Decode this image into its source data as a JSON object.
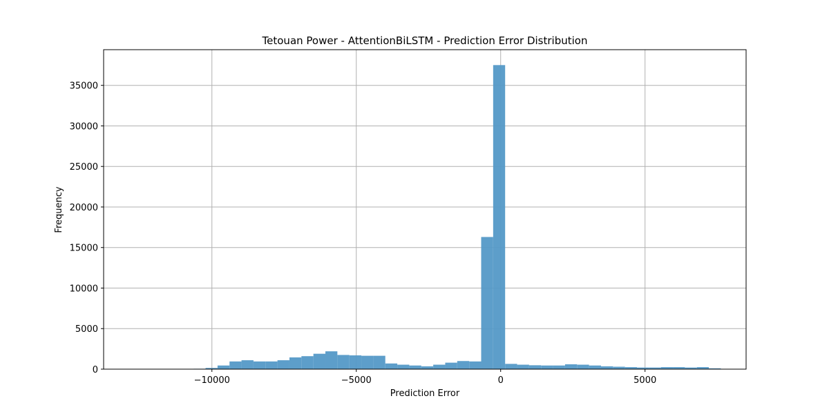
{
  "chart_data": {
    "type": "bar",
    "title": "Tetouan Power - AttentionBiLSTM - Prediction Error Distribution",
    "xlabel": "Prediction Error",
    "ylabel": "Frequency",
    "xlim": [
      -13750,
      8500
    ],
    "ylim": [
      0,
      39400
    ],
    "x_ticks": [
      -10000,
      -5000,
      0,
      5000
    ],
    "x_tick_labels": [
      "−10000",
      "−5000",
      "0",
      "5000"
    ],
    "y_ticks": [
      0,
      5000,
      10000,
      15000,
      20000,
      25000,
      30000,
      35000
    ],
    "y_tick_labels": [
      "0",
      "5000",
      "10000",
      "15000",
      "20000",
      "25000",
      "30000",
      "35000"
    ],
    "grid": true,
    "bar_color": "#5499c7",
    "bin_edges": [
      -12710,
      -12295,
      -11880,
      -11465,
      -11050,
      -10635,
      -10220,
      -9805,
      -9390,
      -8975,
      -8560,
      -8145,
      -7730,
      -7315,
      -6900,
      -6485,
      -6070,
      -5655,
      -5240,
      -4825,
      -4410,
      -3995,
      -3580,
      -3165,
      -2750,
      -2335,
      -1920,
      -1505,
      -1090,
      -675,
      -260,
      155,
      570,
      985,
      1400,
      1815,
      2230,
      2645,
      3060,
      3475,
      3890,
      4305,
      4720,
      5135,
      5550,
      5965,
      6380,
      6795,
      7210,
      7625,
      8040
    ],
    "values": [
      5,
      5,
      10,
      15,
      25,
      50,
      150,
      450,
      950,
      1100,
      950,
      950,
      1100,
      1450,
      1600,
      1900,
      2200,
      1750,
      1700,
      1650,
      1650,
      700,
      550,
      450,
      350,
      550,
      800,
      1000,
      950,
      16300,
      37500,
      650,
      550,
      480,
      450,
      450,
      600,
      550,
      450,
      350,
      300,
      250,
      200,
      200,
      250,
      250,
      200,
      250,
      100,
      30
    ]
  }
}
